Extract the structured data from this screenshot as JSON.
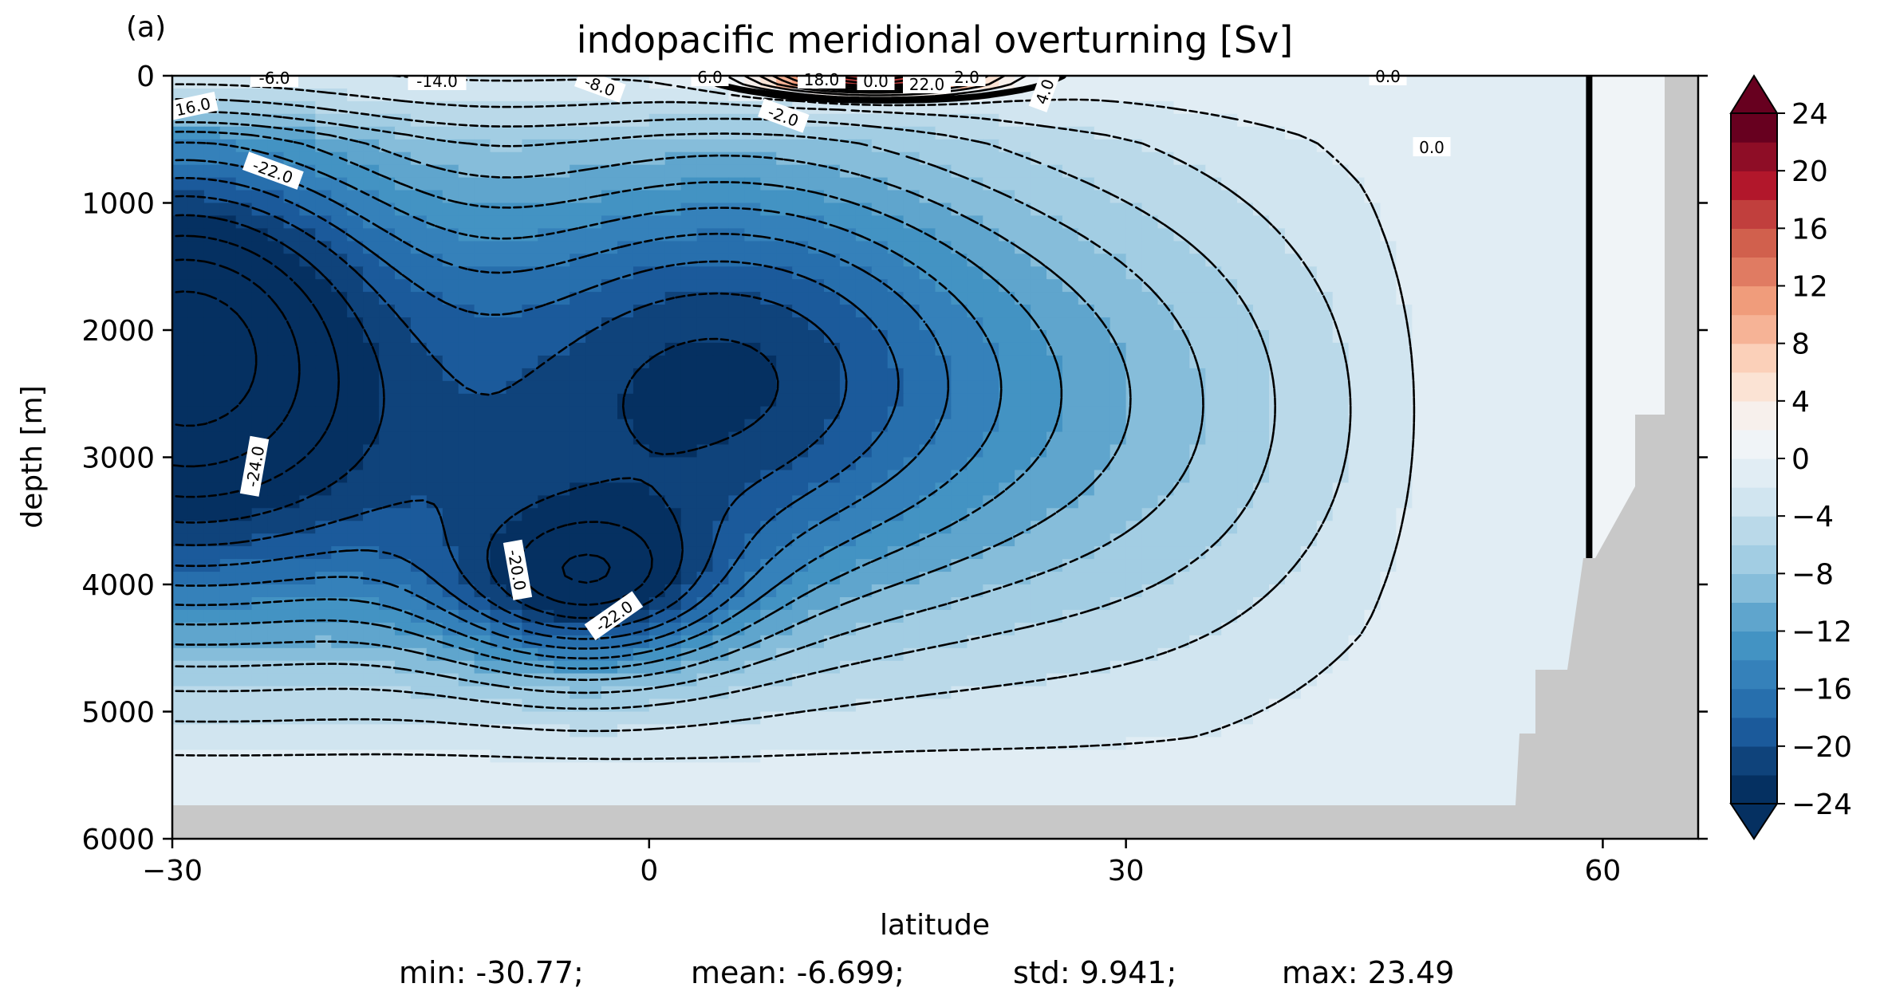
{
  "chart_data": {
    "type": "contour",
    "panel_label": "(a)",
    "title": "indopacific meridional overturning [Sv]",
    "xlabel": "latitude",
    "ylabel": "depth [m]",
    "xlim": [
      -30,
      66
    ],
    "ylim": [
      6000,
      0
    ],
    "x_ticks": [
      -30,
      0,
      30,
      60
    ],
    "x_tick_labels": [
      "−30",
      "0",
      "30",
      "60"
    ],
    "y_ticks": [
      0,
      1000,
      2000,
      3000,
      4000,
      5000,
      6000
    ],
    "y_tick_labels": [
      "0",
      "1000",
      "2000",
      "3000",
      "4000",
      "5000",
      "6000"
    ],
    "colormap": "RdBu_r",
    "colorbar": {
      "min": -24,
      "max": 24,
      "step": 2,
      "extend": "both",
      "tick_values": [
        24,
        20,
        16,
        12,
        8,
        4,
        0,
        -4,
        -8,
        -12,
        -16,
        -20,
        -24
      ],
      "tick_labels": [
        "24",
        "20",
        "16",
        "12",
        "8",
        "4",
        "0",
        "−4",
        "−8",
        "−12",
        "−16",
        "−20",
        "−24"
      ]
    },
    "colors": {
      "land": "#c8c8c8",
      "palette": [
        "#053061",
        "#0f437b",
        "#1b5a9b",
        "#276fad",
        "#3581ba",
        "#4393c3",
        "#5fa5cd",
        "#86bdda",
        "#a2cde3",
        "#bad9e9",
        "#d1e5f0",
        "#e1edf4",
        "#f0f4f7",
        "#f7f0ec",
        "#fbe3d4",
        "#fbd0b9",
        "#f6b396",
        "#f09c7b",
        "#e07b62",
        "#d1604d",
        "#c13f3d",
        "#b2172b",
        "#8e0d26",
        "#67001f"
      ]
    },
    "contour_labels": [
      "-6.0",
      "-14.0",
      "16.0",
      "-8.0",
      "6.0",
      "18.0",
      "0.0",
      "22.0",
      "2.0",
      "4.0",
      "-2.0",
      "-22.0",
      "-24.0",
      "-20.0",
      "-22.0",
      "0.0",
      "0.0"
    ],
    "minimum_cell": {
      "lat": -28,
      "depth": 1600,
      "value": -24
    },
    "secondary_minimum": {
      "lat": -4,
      "depth": 4100,
      "value": -22
    },
    "surface_maximum": {
      "lat": 15,
      "depth": 50,
      "value": 22
    },
    "stats": {
      "min": "min: -30.77;",
      "mean": "mean: -6.699;",
      "std": "std: 9.941;",
      "max": "max: 23.49"
    }
  }
}
